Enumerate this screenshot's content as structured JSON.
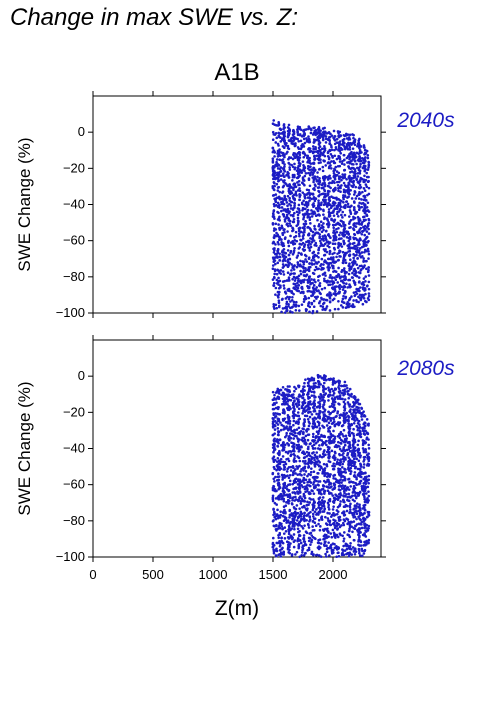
{
  "figure": {
    "title": "Change in max SWE vs. Z:",
    "scenario": "A1B",
    "point_color": "#1c1cc4"
  },
  "chart_data": [
    {
      "type": "scatter",
      "label": "2040s",
      "xlabel": "Z(m)",
      "ylabel": "SWE Change (%)",
      "xlim": [
        0,
        2400
      ],
      "ylim": [
        -100,
        20
      ],
      "xticks": [
        0,
        500,
        1000,
        1500,
        2000
      ],
      "yticks": [
        -100,
        -80,
        -60,
        -40,
        -20,
        0
      ],
      "x_range_of_points": [
        1500,
        2300
      ],
      "upper_envelope": [
        [
          1500,
          7
        ],
        [
          1600,
          5
        ],
        [
          1700,
          3
        ],
        [
          1800,
          4
        ],
        [
          1900,
          3
        ],
        [
          2000,
          1
        ],
        [
          2100,
          0
        ],
        [
          2200,
          -2
        ],
        [
          2300,
          -10
        ]
      ],
      "lower_envelope": [
        [
          1500,
          -100
        ],
        [
          1700,
          -100
        ],
        [
          1900,
          -100
        ],
        [
          2100,
          -98
        ],
        [
          2300,
          -95
        ]
      ]
    },
    {
      "type": "scatter",
      "label": "2080s",
      "xlabel": "Z(m)",
      "ylabel": "SWE Change (%)",
      "xlim": [
        0,
        2400
      ],
      "ylim": [
        -100,
        20
      ],
      "xticks": [
        0,
        500,
        1000,
        1500,
        2000
      ],
      "yticks": [
        -100,
        -80,
        -60,
        -40,
        -20,
        0
      ],
      "x_range_of_points": [
        1500,
        2300
      ],
      "upper_envelope": [
        [
          1500,
          -8
        ],
        [
          1600,
          -5
        ],
        [
          1700,
          -5
        ],
        [
          1800,
          0
        ],
        [
          1900,
          1
        ],
        [
          2000,
          -1
        ],
        [
          2100,
          -3
        ],
        [
          2200,
          -12
        ],
        [
          2300,
          -25
        ]
      ],
      "lower_envelope": [
        [
          1500,
          -100
        ],
        [
          1700,
          -100
        ],
        [
          1900,
          -100
        ],
        [
          2100,
          -100
        ],
        [
          2300,
          -100
        ]
      ]
    }
  ]
}
